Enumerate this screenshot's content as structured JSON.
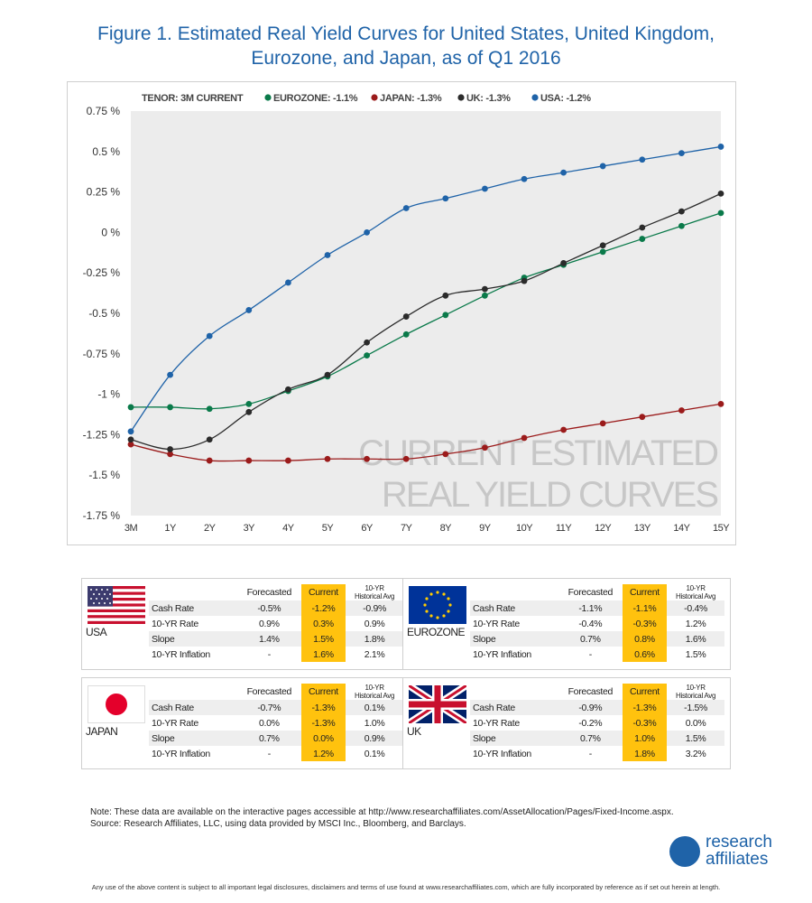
{
  "page": {
    "title_line1": "Figure 1. Estimated Real Yield Curves for United States, United Kingdom,",
    "title_line2": "Eurozone, and Japan, as of Q1 2016",
    "note_line1": "Note: These data are available on the interactive pages accessible at http://www.researchaffiliates.com/AssetAllocation/Pages/Fixed-Income.aspx.",
    "note_line2": "Source: Research Affiliates, LLC, using data provided by MSCI Inc., Bloomberg, and Barclays.",
    "logo_line1": "research",
    "logo_line2": "affiliates",
    "disclaimer": "Any use of the above content is subject to all important legal disclosures, disclaimers and terms of use found at www.researchaffiliates.com, which are fully incorporated by reference as if set out herein at length."
  },
  "chart_data": {
    "type": "line",
    "legend_prefix": "TENOR: 3M   CURRENT",
    "legend_position": "top",
    "watermark_line1": "CURRENT ESTIMATED",
    "watermark_line2": "REAL YIELD CURVES",
    "grid": false,
    "plot_background": "#ececec",
    "categories": [
      "3M",
      "1Y",
      "2Y",
      "3Y",
      "4Y",
      "5Y",
      "6Y",
      "7Y",
      "8Y",
      "9Y",
      "10Y",
      "11Y",
      "12Y",
      "13Y",
      "14Y",
      "15Y"
    ],
    "y_ticks": [
      0.75,
      0.5,
      0.25,
      0,
      -0.25,
      -0.5,
      -0.75,
      -1,
      -1.25,
      -1.5,
      -1.75
    ],
    "y_tick_labels": [
      "0.75 %",
      "0.5 %",
      "0.25 %",
      "0 %",
      "-0.25 %",
      "-0.5 %",
      "-0.75 %",
      "-1 %",
      "-1.25 %",
      "-1.5 %",
      "-1.75 %"
    ],
    "ylim": [
      -1.75,
      0.75
    ],
    "series": [
      {
        "name": "EUROZONE: -1.1%",
        "color": "#0a7a4a",
        "values": [
          -1.08,
          -1.08,
          -1.09,
          -1.06,
          -0.98,
          -0.89,
          -0.76,
          -0.63,
          -0.51,
          -0.39,
          -0.28,
          -0.2,
          -0.12,
          -0.04,
          0.04,
          0.12
        ]
      },
      {
        "name": "JAPAN: -1.3%",
        "color": "#9b1b1b",
        "values": [
          -1.31,
          -1.37,
          -1.41,
          -1.41,
          -1.41,
          -1.4,
          -1.4,
          -1.4,
          -1.37,
          -1.33,
          -1.27,
          -1.22,
          -1.18,
          -1.14,
          -1.1,
          -1.06
        ]
      },
      {
        "name": "UK: -1.3%",
        "color": "#2b2b2b",
        "values": [
          -1.28,
          -1.34,
          -1.28,
          -1.11,
          -0.97,
          -0.88,
          -0.68,
          -0.52,
          -0.39,
          -0.35,
          -0.3,
          -0.19,
          -0.08,
          0.03,
          0.13,
          0.24
        ]
      },
      {
        "name": "USA: -1.2%",
        "color": "#1f63a8",
        "values": [
          -1.23,
          -0.88,
          -0.64,
          -0.48,
          -0.31,
          -0.14,
          0.0,
          0.15,
          0.21,
          0.27,
          0.33,
          0.37,
          0.41,
          0.45,
          0.49,
          0.53
        ]
      }
    ]
  },
  "tables": {
    "col_forecasted": "Forecasted",
    "col_current": "Current",
    "col_hist_line1": "10-YR",
    "col_hist_line2": "Historical Avg",
    "row_labels": [
      "Cash Rate",
      "10-YR Rate",
      "Slope",
      "10-YR Inflation"
    ],
    "panels": [
      {
        "country": "USA",
        "flag": "usa-flag-icon",
        "forecasted": [
          "-0.5%",
          "0.9%",
          "1.4%",
          "-"
        ],
        "current": [
          "-1.2%",
          "0.3%",
          "1.5%",
          "1.6%"
        ],
        "hist": [
          "-0.9%",
          "0.9%",
          "1.8%",
          "2.1%"
        ]
      },
      {
        "country": "EUROZONE",
        "flag": "eu-flag-icon",
        "forecasted": [
          "-1.1%",
          "-0.4%",
          "0.7%",
          "-"
        ],
        "current": [
          "-1.1%",
          "-0.3%",
          "0.8%",
          "0.6%"
        ],
        "hist": [
          "-0.4%",
          "1.2%",
          "1.6%",
          "1.5%"
        ]
      },
      {
        "country": "JAPAN",
        "flag": "japan-flag-icon",
        "forecasted": [
          "-0.7%",
          "0.0%",
          "0.7%",
          "-"
        ],
        "current": [
          "-1.3%",
          "-1.3%",
          "0.0%",
          "1.2%"
        ],
        "hist": [
          "0.1%",
          "1.0%",
          "0.9%",
          "0.1%"
        ]
      },
      {
        "country": "UK",
        "flag": "uk-flag-icon",
        "forecasted": [
          "-0.9%",
          "-0.2%",
          "0.7%",
          "-"
        ],
        "current": [
          "-1.3%",
          "-0.3%",
          "1.0%",
          "1.8%"
        ],
        "hist": [
          "-1.5%",
          "0.0%",
          "1.5%",
          "3.2%"
        ]
      }
    ]
  }
}
